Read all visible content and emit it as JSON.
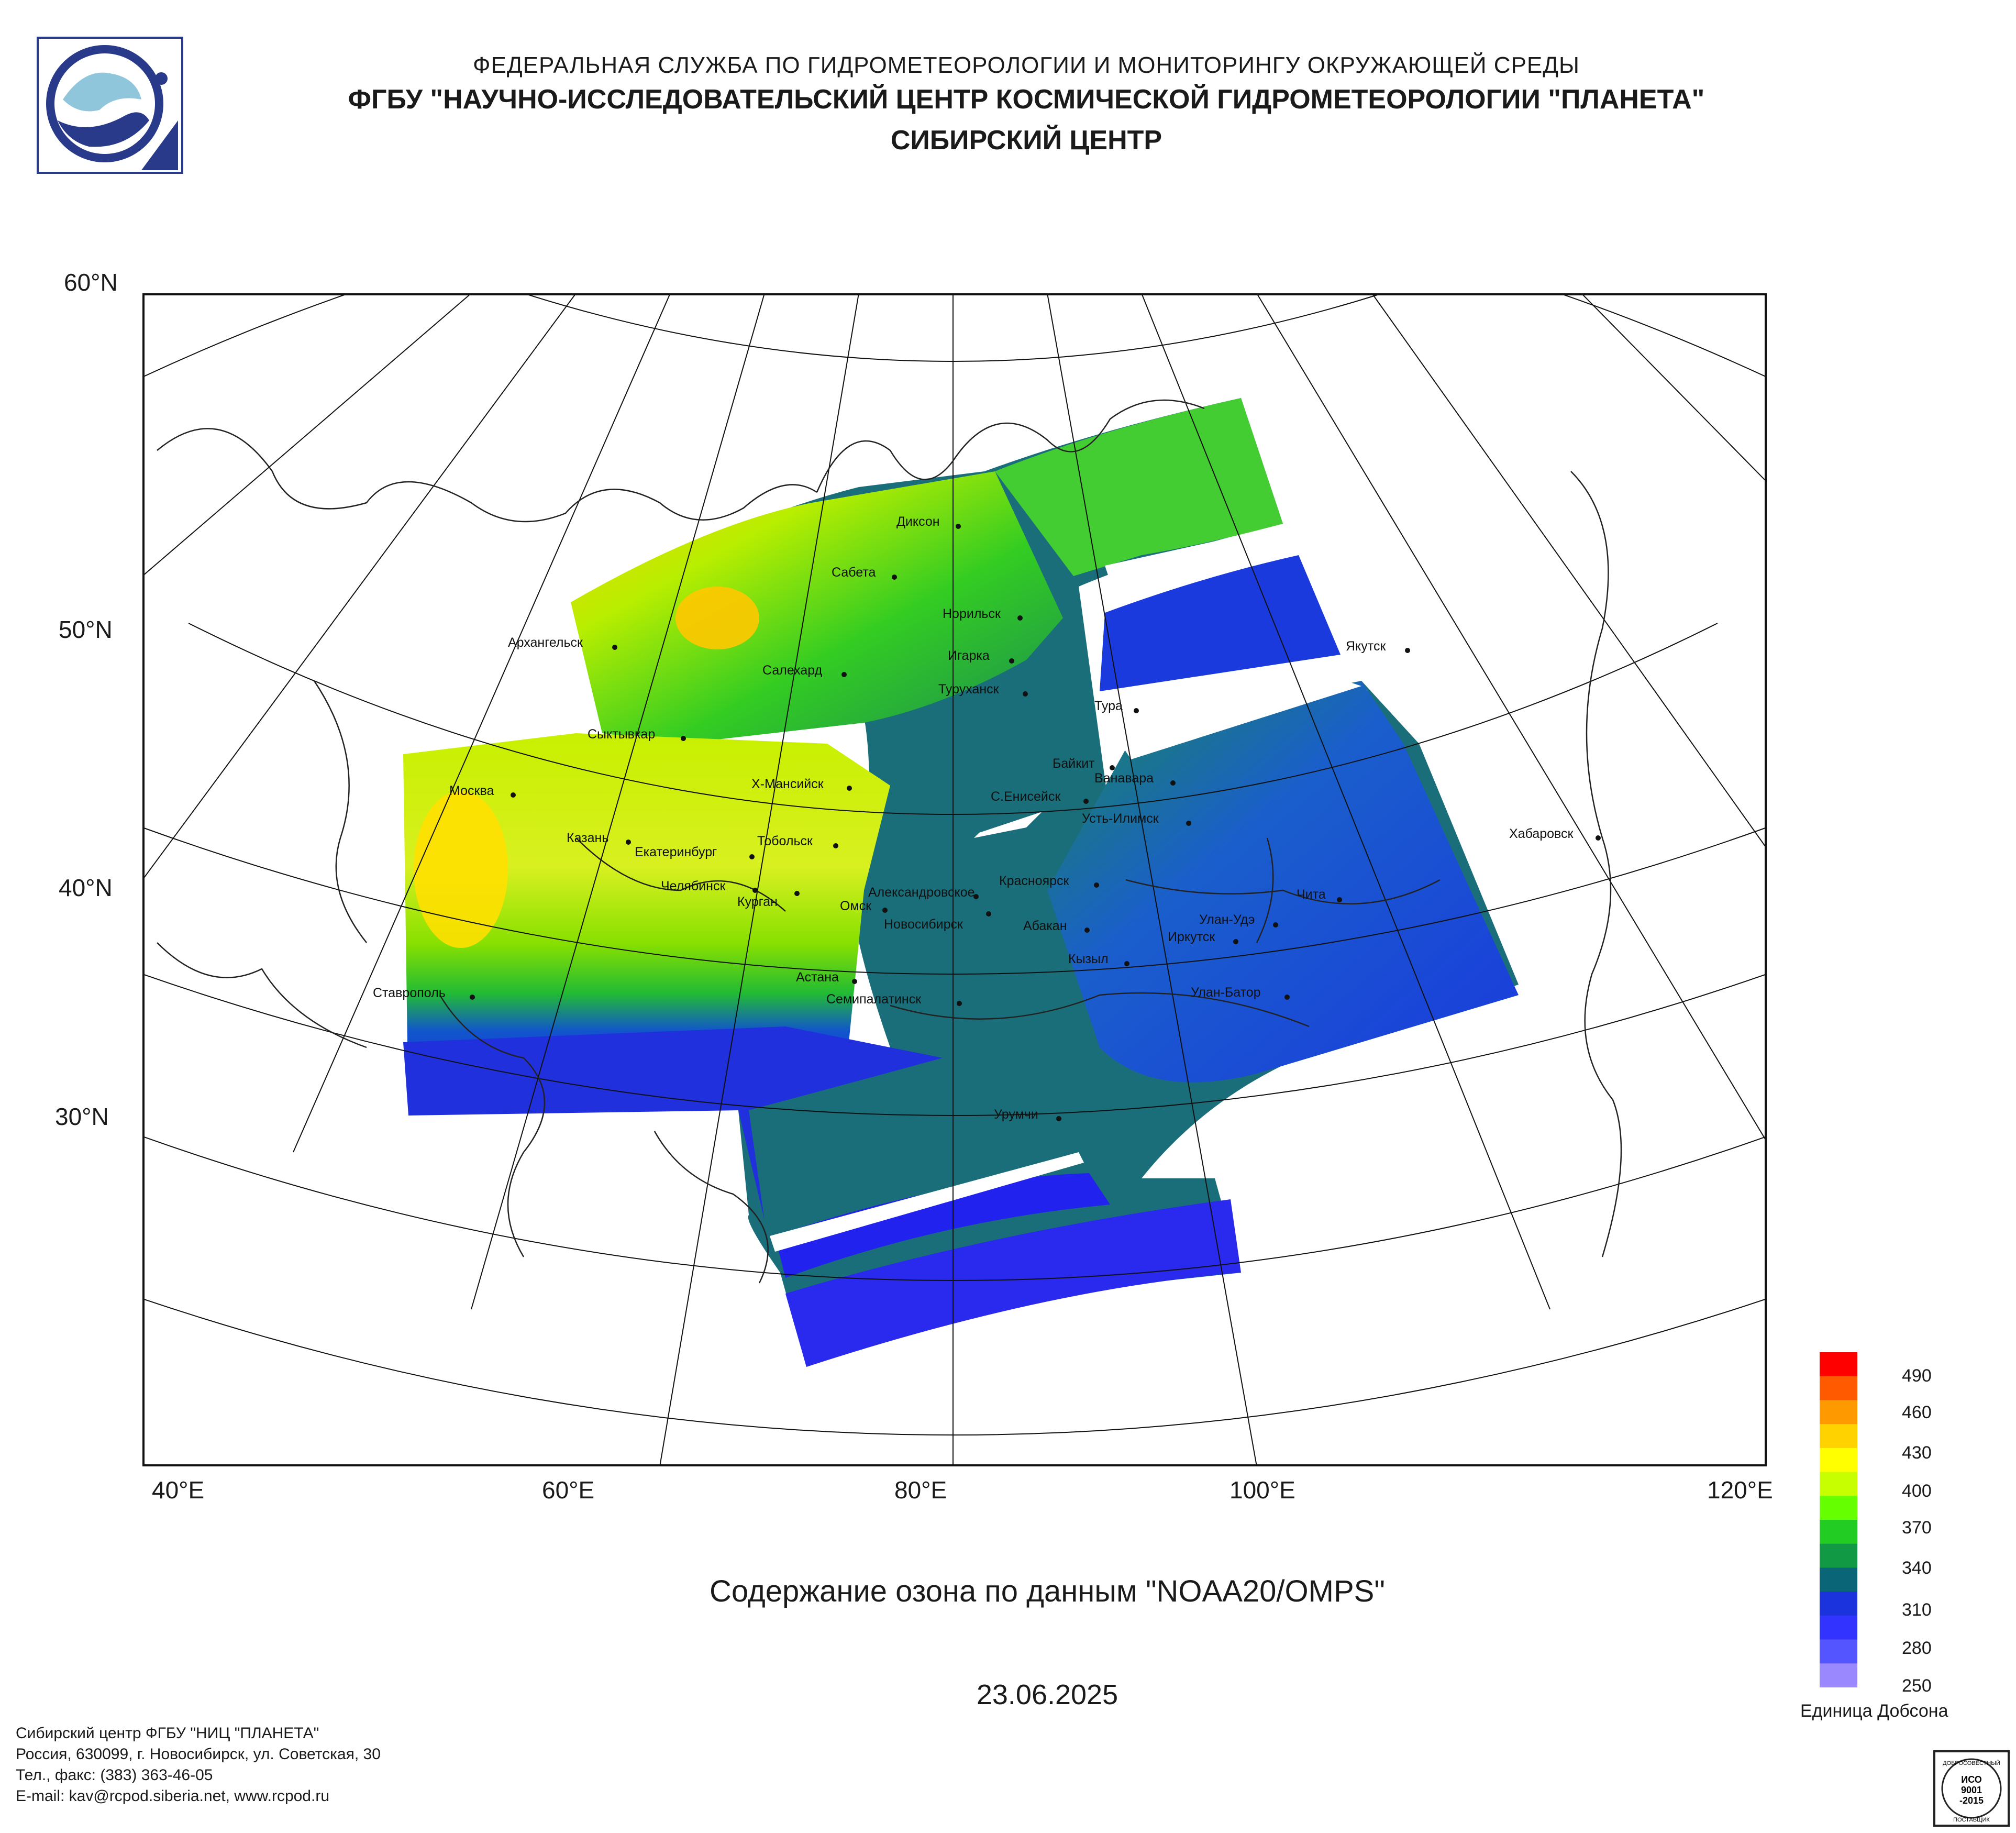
{
  "header": {
    "line1": "ФЕДЕРАЛЬНАЯ СЛУЖБА ПО ГИДРОМЕТЕОРОЛОГИИ И МОНИТОРИНГУ ОКРУЖАЮЩЕЙ СРЕДЫ",
    "line2": "ФГБУ \"НАУЧНО-ИССЛЕДОВАТЕЛЬСКИЙ ЦЕНТР КОСМИЧЕСКОЙ ГИДРОМЕТЕОРОЛОГИИ \"ПЛАНЕТА\"",
    "line3": "СИБИРСКИЙ ЦЕНТР"
  },
  "latitude_labels": [
    "60°N",
    "50°N",
    "40°N",
    "30°N"
  ],
  "longitude_labels": [
    "40°E",
    "60°E",
    "80°E",
    "100°E",
    "120°E"
  ],
  "cities": [
    "Диксон",
    "Сабета",
    "Норильск",
    "Игарка",
    "Туруханск",
    "Салехард",
    "Архангельск",
    "Сыктывкар",
    "Тура",
    "Якутск",
    "Байкит",
    "Ванавара",
    "С.Енисейск",
    "Усть-Илимск",
    "Х-Мансийск",
    "Москва",
    "Казань",
    "Екатеринбург",
    "Тобольск",
    "Хабаровск",
    "Челябинск",
    "Курган",
    "Александровское",
    "Красноярск",
    "Омск",
    "Новосибирск",
    "Абакан",
    "Улан-Удэ",
    "Чита",
    "Иркутск",
    "Кызыл",
    "Астана",
    "Семипалатинск",
    "Ставрополь",
    "Улан-Батор",
    "Урумчи"
  ],
  "product_title": "Содержание озона по данным \"NOAA20/OMPS\"",
  "date": "23.06.2025",
  "legend": {
    "ticks": [
      "490",
      "460",
      "430",
      "400",
      "370",
      "340",
      "310",
      "280",
      "250"
    ],
    "unit": "Единица Добсона",
    "colors": [
      "#ff0000",
      "#ff5a00",
      "#ff9900",
      "#ffd200",
      "#ffff00",
      "#c8ff00",
      "#66ff00",
      "#22cc22",
      "#119944",
      "#0a6677",
      "#1a33dd",
      "#3333ff",
      "#5555ff",
      "#9a88ff"
    ]
  },
  "footer": {
    "line1": "Сибирский центр ФГБУ \"НИЦ \"ПЛАНЕТА\"",
    "line2": "Россия, 630099, г. Новосибирск, ул. Советская, 30",
    "line3": "Тел., факс: (383) 363-46-05",
    "line4": "E-mail: kav@rcpod.siberia.net, www.rcpod.ru"
  },
  "iso_badge": {
    "top": "ДОБРОСОВЕСТНЫЙ",
    "l1": "ИСО",
    "l2": "9001",
    "l3": "-2015",
    "bottom": "ПОСТАВЩИК"
  }
}
